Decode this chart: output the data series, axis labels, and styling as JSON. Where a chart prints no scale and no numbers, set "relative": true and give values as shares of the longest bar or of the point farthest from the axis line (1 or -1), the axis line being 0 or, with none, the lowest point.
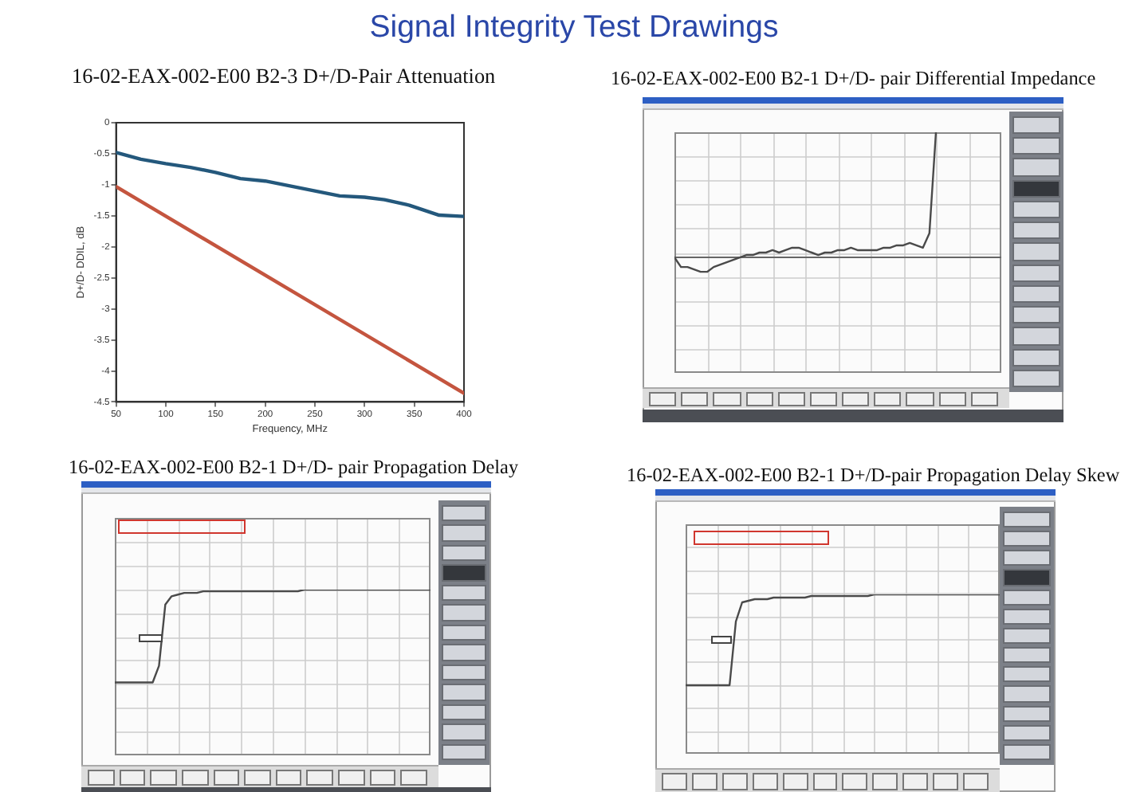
{
  "chart_data": [
    {
      "type": "line",
      "title": "Signal Integrity Test Drawings",
      "subtitle": "16-02-EAX-002-E00 B2-3 D+/D-Pair Attenuation",
      "xlabel": "Frequency, MHz",
      "ylabel": "D+/D- DDIL, dB",
      "xlim": [
        50,
        400
      ],
      "xticks": [
        50,
        100,
        150,
        200,
        250,
        300,
        350,
        400
      ],
      "ylim": [
        -4.5,
        0
      ],
      "yticks": [
        0,
        -0.5,
        -1,
        -1.5,
        -2,
        -2.5,
        -3,
        -3.5,
        -4,
        -4.5
      ],
      "grid": false,
      "series": [
        {
          "color": "#24587c",
          "x": [
            50,
            75,
            100,
            125,
            150,
            175,
            200,
            225,
            250,
            275,
            300,
            320,
            345,
            375,
            400
          ],
          "values": [
            -0.48,
            -0.59,
            -0.66,
            -0.72,
            -0.8,
            -0.9,
            -0.94,
            -1.02,
            -1.1,
            -1.18,
            -1.2,
            -1.24,
            -1.33,
            -1.49,
            -1.51
          ]
        },
        {
          "color": "#c4553f",
          "x": [
            50,
            400
          ],
          "values": [
            -1.03,
            -4.36
          ]
        }
      ]
    },
    {
      "type": "line",
      "title": "16-02-EAX-002-E00 B2-1 D+/D- pair Differential Impedance",
      "relative": true,
      "grid": true,
      "categories": [
        null,
        null,
        null,
        null,
        null,
        null,
        null,
        null,
        null,
        null,
        null,
        null,
        null,
        null,
        null,
        null,
        null,
        null,
        null,
        null,
        null,
        null,
        null,
        null,
        null,
        null,
        null,
        null,
        null,
        null,
        null,
        null,
        null,
        null,
        null,
        null,
        null,
        null,
        null,
        null,
        null,
        null,
        null,
        null,
        null,
        null,
        null,
        null,
        null,
        null,
        null
      ],
      "series": [
        {
          "color": "#4a4a4a",
          "values": [
            0.48,
            0.44,
            0.44,
            0.43,
            0.42,
            0.42,
            0.44,
            0.45,
            0.46,
            0.47,
            0.48,
            0.49,
            0.49,
            0.5,
            0.5,
            0.51,
            0.5,
            0.51,
            0.52,
            0.52,
            0.51,
            0.5,
            0.49,
            0.5,
            0.5,
            0.51,
            0.51,
            0.52,
            0.51,
            0.51,
            0.51,
            0.51,
            0.52,
            0.52,
            0.53,
            0.53,
            0.54,
            0.53,
            0.52,
            0.58,
            1,
            null,
            null,
            null,
            null,
            null,
            null,
            null,
            null,
            null,
            null
          ]
        }
      ],
      "ref_lines": [
        {
          "axis": "y",
          "value": 0.48,
          "color": "#666666"
        }
      ]
    },
    {
      "type": "line",
      "title": "16-02-EAX-002-E00 B2-1 D+/D- pair Propagation Delay",
      "relative": true,
      "grid": true,
      "categories": [
        null,
        null,
        null,
        null,
        null,
        null,
        null,
        null,
        null,
        null,
        null,
        null,
        null,
        null,
        null,
        null,
        null,
        null,
        null,
        null,
        null,
        null,
        null,
        null,
        null,
        null,
        null,
        null,
        null,
        null,
        null,
        null,
        null,
        null,
        null,
        null,
        null,
        null,
        null,
        null,
        null,
        null,
        null,
        null,
        null,
        null,
        null,
        null,
        null,
        null,
        null
      ],
      "series": [
        {
          "color": "#4a4a4a",
          "values": [
            0.44,
            0.44,
            0.44,
            0.44,
            0.44,
            0.44,
            0.44,
            0.54,
            0.91,
            0.96,
            0.97,
            0.98,
            0.98,
            0.98,
            0.99,
            0.99,
            0.99,
            0.99,
            0.99,
            0.99,
            0.99,
            0.99,
            0.99,
            0.99,
            0.99,
            0.99,
            0.99,
            0.99,
            0.99,
            0.99,
            1,
            1,
            1,
            1,
            1,
            1,
            1,
            1,
            1,
            1,
            1,
            1,
            1,
            1,
            1,
            1,
            1,
            1,
            1,
            1,
            1
          ]
        }
      ]
    },
    {
      "type": "line",
      "title": "16-02-EAX-002-E00 B2-1 D+/D-pair Propagation Delay Skew",
      "relative": true,
      "grid": true,
      "categories": [
        null,
        null,
        null,
        null,
        null,
        null,
        null,
        null,
        null,
        null,
        null,
        null,
        null,
        null,
        null,
        null,
        null,
        null,
        null,
        null,
        null,
        null,
        null,
        null,
        null,
        null,
        null,
        null,
        null,
        null,
        null,
        null,
        null,
        null,
        null,
        null,
        null,
        null,
        null,
        null,
        null,
        null,
        null,
        null,
        null,
        null,
        null,
        null,
        null,
        null,
        null
      ],
      "series": [
        {
          "color": "#4a4a4a",
          "values": [
            0.43,
            0.43,
            0.43,
            0.43,
            0.43,
            0.43,
            0.43,
            0.43,
            0.83,
            0.95,
            0.96,
            0.97,
            0.97,
            0.97,
            0.98,
            0.98,
            0.98,
            0.98,
            0.98,
            0.98,
            0.99,
            0.99,
            0.99,
            0.99,
            0.99,
            0.99,
            0.99,
            0.99,
            0.99,
            0.99,
            1,
            1,
            1,
            1,
            1,
            1,
            1,
            1,
            1,
            1,
            1,
            1,
            1,
            1,
            1,
            1,
            1,
            1,
            1,
            1,
            1
          ]
        }
      ]
    }
  ]
}
